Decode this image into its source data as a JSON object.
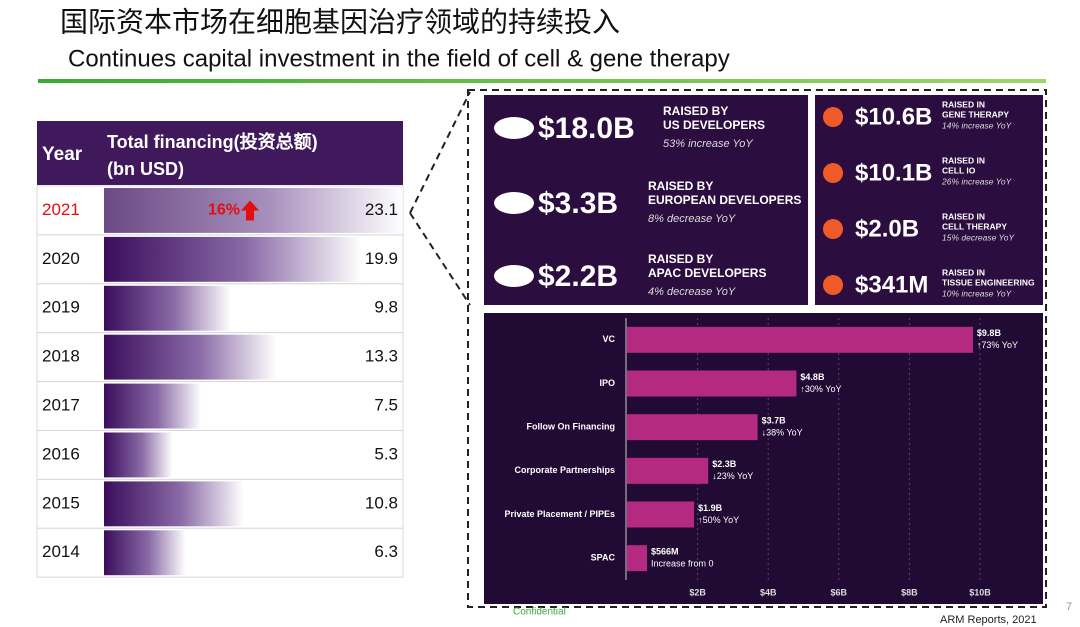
{
  "header": {
    "title_cn": "国际资本市场在细胞基因治疗领域的持续投入",
    "title_en": "Continues capital investment in the field of cell & gene therapy"
  },
  "table": {
    "header_year": "Year",
    "header_total": [
      "Total financing(投资总额)",
      "(bn USD)"
    ],
    "rows": [
      {
        "year": "2021",
        "value": 23.1,
        "change": "16%"
      },
      {
        "year": "2020",
        "value": 19.9
      },
      {
        "year": "2019",
        "value": 9.8
      },
      {
        "year": "2018",
        "value": 13.3
      },
      {
        "year": "2017",
        "value": 7.5
      },
      {
        "year": "2016",
        "value": 5.3
      },
      {
        "year": "2015",
        "value": 10.8
      },
      {
        "year": "2014",
        "value": 6.3
      }
    ]
  },
  "regions": [
    {
      "amount": "$18.0B",
      "label": [
        "RAISED BY",
        "US DEVELOPERS"
      ],
      "change": "53% increase YoY"
    },
    {
      "amount": "$3.3B",
      "label": [
        "RAISED BY",
        "EUROPEAN DEVELOPERS"
      ],
      "change": "8% decrease YoY"
    },
    {
      "amount": "$2.2B",
      "label": [
        "RAISED BY",
        "APAC DEVELOPERS"
      ],
      "change": "4% decrease YoY"
    }
  ],
  "sectors": [
    {
      "amount": "$10.6B",
      "label": [
        "RAISED IN",
        "GENE THERAPY"
      ],
      "change": "14% increase YoY"
    },
    {
      "amount": "$10.1B",
      "label": [
        "RAISED IN",
        "CELL IO"
      ],
      "change": "26% increase YoY"
    },
    {
      "amount": "$2.0B",
      "label": [
        "RAISED IN",
        "CELL THERAPY"
      ],
      "change": "15% decrease YoY"
    },
    {
      "amount": "$341M",
      "label": [
        "RAISED IN",
        "TISSUE ENGINEERING"
      ],
      "change": "10% increase YoY"
    }
  ],
  "chart_data": {
    "type": "bar",
    "orientation": "horizontal",
    "categories": [
      "VC",
      "IPO",
      "Follow On Financing",
      "Corporate Partnerships",
      "Private Placement / PIPEs",
      "SPAC"
    ],
    "values": [
      9.8,
      4.8,
      3.7,
      2.3,
      1.9,
      0.566
    ],
    "value_labels": [
      "$9.8B",
      "$4.8B",
      "$3.7B",
      "$2.3B",
      "$1.9B",
      "$566M"
    ],
    "changes": [
      "↑73% YoY",
      "↑30% YoY",
      "↓38% YoY",
      "↓23% YoY",
      "↑50% YoY",
      "Increase from 0"
    ],
    "color": "#b42a80",
    "xlim": [
      0,
      11.7
    ],
    "xticks": [
      {
        "value": 2,
        "label": "$2B"
      },
      {
        "value": 4,
        "label": "$4B"
      },
      {
        "value": 6,
        "label": "$6B"
      },
      {
        "value": 8,
        "label": "$8B"
      },
      {
        "value": 10,
        "label": "$10B"
      }
    ],
    "grid": true
  },
  "footer": {
    "confidential": "Confidential",
    "source": "ARM Reports, 2021",
    "page": "7"
  }
}
